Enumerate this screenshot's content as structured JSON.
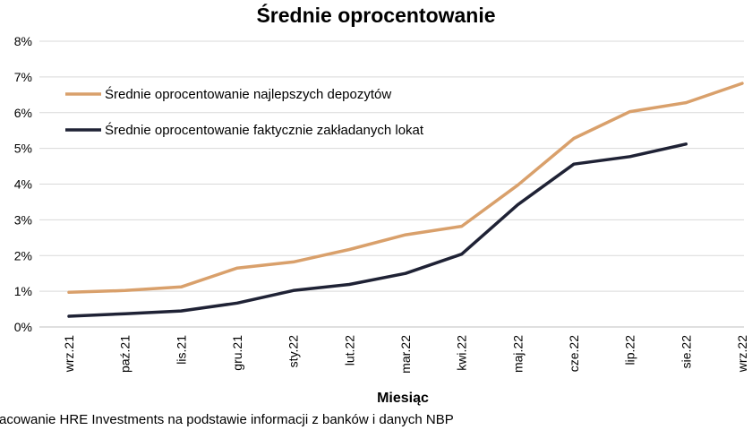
{
  "chart_data": {
    "type": "line",
    "title": "Średnie oprocentowanie",
    "xlabel": "Miesiąc",
    "ylabel": "",
    "categories": [
      "wrz.21",
      "paź.21",
      "lis.21",
      "gru.21",
      "sty.22",
      "lut.22",
      "mar.22",
      "kwi.22",
      "maj.22",
      "cze.22",
      "lip.22",
      "sie.22",
      "wrz.22"
    ],
    "y_ticks": [
      "0%",
      "1%",
      "2%",
      "3%",
      "4%",
      "5%",
      "6%",
      "7%",
      "8%"
    ],
    "ylim": [
      0,
      8
    ],
    "grid": true,
    "legend_position": "top-left",
    "series": [
      {
        "name": "Średnie oprocentowanie najlepszych depozytów",
        "color": "#d9a06b",
        "values": [
          0.97,
          1.02,
          1.12,
          1.65,
          1.82,
          2.17,
          2.58,
          2.82,
          3.97,
          5.28,
          6.03,
          6.28,
          6.82
        ]
      },
      {
        "name": "Średnie oprocentowanie faktycznie zakładanych lokat",
        "color": "#1f2235",
        "values": [
          0.3,
          0.37,
          0.45,
          0.67,
          1.02,
          1.19,
          1.5,
          2.04,
          3.42,
          4.56,
          4.77,
          5.12,
          null
        ]
      }
    ]
  },
  "source_note": "racowanie HRE Investments na podstawie informacji z banków i danych NBP"
}
